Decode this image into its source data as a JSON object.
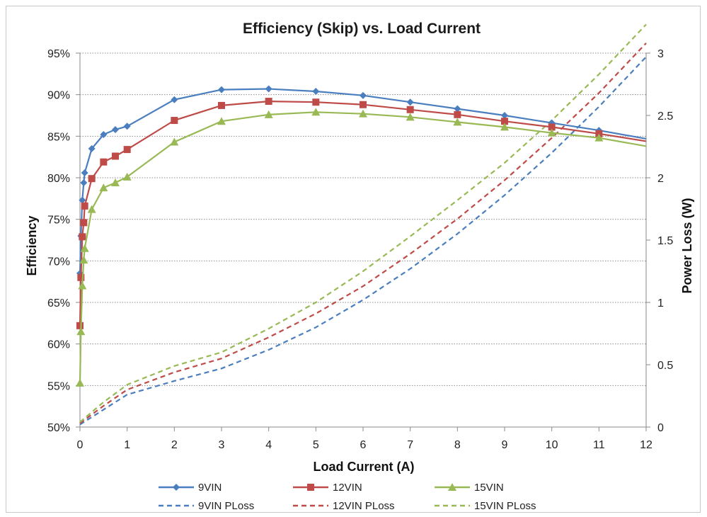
{
  "chart_data": {
    "type": "line",
    "title": "Efficiency (Skip) vs. Load Current",
    "xlabel": "Load Current (A)",
    "ylabel": "Efficiency",
    "y2label": "Power Loss (W)",
    "xlim": [
      0,
      12
    ],
    "ylim": [
      50,
      95
    ],
    "y2lim": [
      0,
      3
    ],
    "x_ticks": [
      "0",
      "1",
      "2",
      "3",
      "4",
      "5",
      "6",
      "7",
      "8",
      "9",
      "10",
      "11",
      "12"
    ],
    "y_ticks": [
      "50%",
      "55%",
      "60%",
      "65%",
      "70%",
      "75%",
      "80%",
      "85%",
      "90%",
      "95%"
    ],
    "y2_ticks": [
      "0",
      "0.5",
      "1",
      "1.5",
      "2",
      "2.5",
      "3"
    ],
    "grid": "horizontal dotted",
    "legend_position": "bottom",
    "series": [
      {
        "name": "9VIN",
        "axis": "left",
        "color": "#4a7ebf",
        "marker": "diamond",
        "dash": "solid",
        "x": [
          0,
          0.02,
          0.05,
          0.08,
          0.1,
          0.25,
          0.5,
          0.75,
          1,
          2,
          3,
          4,
          5,
          6,
          7,
          8,
          9,
          10,
          11,
          12
        ],
        "y": [
          68.5,
          73,
          77.3,
          79.4,
          80.6,
          83.5,
          85.2,
          85.8,
          86.2,
          89.4,
          90.6,
          90.7,
          90.4,
          89.9,
          89.1,
          88.3,
          87.5,
          86.6,
          85.7,
          84.7
        ]
      },
      {
        "name": "12VIN",
        "axis": "left",
        "color": "#be4b48",
        "marker": "square",
        "dash": "solid",
        "x": [
          0,
          0.02,
          0.05,
          0.08,
          0.1,
          0.25,
          0.5,
          0.75,
          1,
          2,
          3,
          4,
          5,
          6,
          7,
          8,
          9,
          10,
          11,
          12
        ],
        "y": [
          62.2,
          68,
          72.9,
          74.6,
          76.6,
          79.9,
          81.9,
          82.6,
          83.4,
          86.9,
          88.7,
          89.2,
          89.1,
          88.8,
          88.2,
          87.6,
          86.8,
          86.1,
          85.3,
          84.4
        ]
      },
      {
        "name": "15VIN",
        "axis": "left",
        "color": "#98b954",
        "marker": "triangle",
        "dash": "solid",
        "x": [
          0,
          0.02,
          0.05,
          0.08,
          0.1,
          0.25,
          0.5,
          0.75,
          1,
          2,
          3,
          4,
          5,
          6,
          7,
          8,
          9,
          10,
          11,
          12
        ],
        "y": [
          55.3,
          61.5,
          67,
          70.1,
          71.5,
          76.2,
          78.8,
          79.4,
          80.1,
          84.3,
          86.8,
          87.6,
          87.9,
          87.7,
          87.3,
          86.7,
          86.1,
          85.4,
          84.8,
          83.8
        ]
      },
      {
        "name": "9VIN PLoss",
        "axis": "right",
        "color": "#4a7ebf",
        "dash": "dashed",
        "x": [
          0,
          0.5,
          1,
          2,
          3,
          4,
          5,
          6,
          7,
          8,
          9,
          10,
          11,
          12
        ],
        "y": [
          0.02,
          0.14,
          0.26,
          0.37,
          0.47,
          0.62,
          0.8,
          1.02,
          1.27,
          1.55,
          1.86,
          2.2,
          2.57,
          2.97
        ]
      },
      {
        "name": "12VIN PLoss",
        "axis": "right",
        "color": "#be4b48",
        "dash": "dashed",
        "x": [
          0,
          0.5,
          1,
          2,
          3,
          4,
          5,
          6,
          7,
          8,
          9,
          10,
          11,
          12
        ],
        "y": [
          0.03,
          0.17,
          0.3,
          0.44,
          0.55,
          0.72,
          0.91,
          1.13,
          1.39,
          1.67,
          1.98,
          2.32,
          2.68,
          3.08
        ]
      },
      {
        "name": "15VIN PLoss",
        "axis": "right",
        "color": "#98b954",
        "dash": "dashed",
        "x": [
          0,
          0.5,
          1,
          2,
          3,
          4,
          5,
          6,
          7,
          8,
          9,
          10,
          11,
          12
        ],
        "y": [
          0.04,
          0.2,
          0.34,
          0.49,
          0.6,
          0.79,
          1.0,
          1.25,
          1.53,
          1.82,
          2.12,
          2.46,
          2.83,
          3.23
        ]
      }
    ]
  }
}
